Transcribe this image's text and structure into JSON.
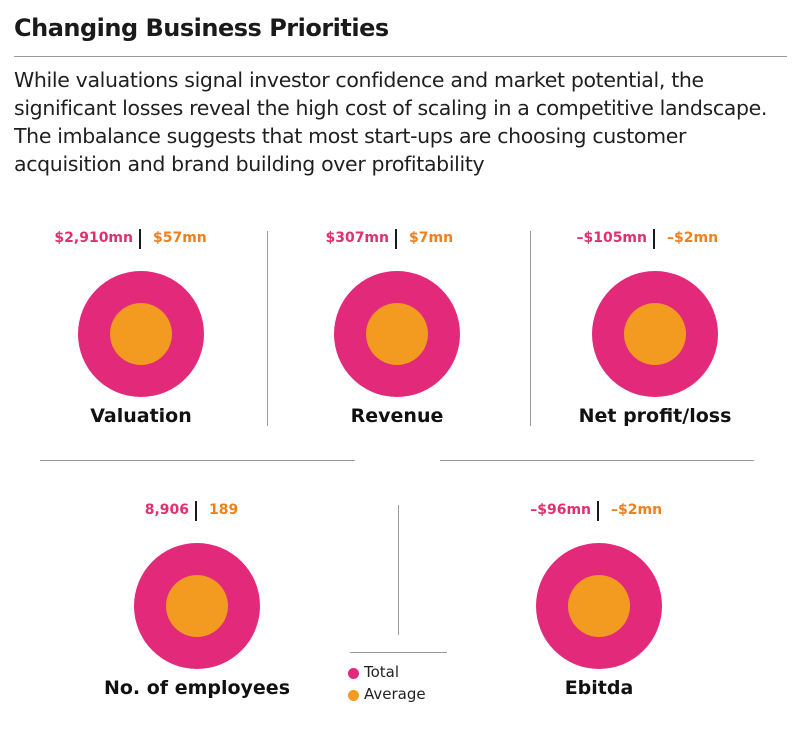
{
  "header": {
    "title": "Changing Business Priorities",
    "subtitle": "While valuations signal investor confidence and market potential, the significant losses reveal the high cost of scaling in a competitive landscape. The imbalance suggests that most start-ups are choosing customer acquisition and brand building over profitability"
  },
  "colors": {
    "total": "#e2297a",
    "average": "#f39a21",
    "total_text": "#e0306f",
    "average_text": "#f0801c"
  },
  "legend": {
    "total_label": "Total",
    "average_label": "Average"
  },
  "chart_data": {
    "type": "other",
    "series": [
      {
        "name": "Total"
      },
      {
        "name": "Average"
      }
    ],
    "metrics": [
      {
        "label": "Valuation",
        "total": "$2,910mn",
        "average": "$57mn"
      },
      {
        "label": "Revenue",
        "total": "$307mn",
        "average": "$7mn"
      },
      {
        "label": "Net profit/loss",
        "total": "–$105mn",
        "average": "–$2mn"
      },
      {
        "label": "No. of employees",
        "total": "8,906",
        "average": "189"
      },
      {
        "label": "Ebitda",
        "total": "–$96mn",
        "average": "–$2mn"
      }
    ]
  }
}
